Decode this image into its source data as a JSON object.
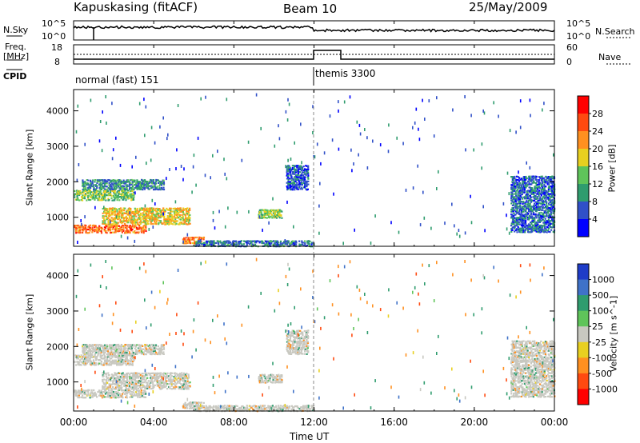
{
  "header": {
    "station": "Kapuskasing (fitACF)",
    "beam": "Beam 10",
    "date": "25/May/2009"
  },
  "noise_panel": {
    "left_label": "N.Sky",
    "right_label": "N.Search",
    "left_ticks": [
      "10^5",
      "10^0"
    ],
    "right_ticks": [
      "10^5",
      "10^0"
    ]
  },
  "freq_panel": {
    "left_label_line1": "Freq.",
    "left_label_line2": "[MHz]",
    "right_label": "Nave",
    "left_ticks": [
      "18",
      "8"
    ],
    "right_ticks": [
      "60",
      "0"
    ]
  },
  "cpid_panel": {
    "label": "CPID",
    "modes": [
      {
        "name": "normal (fast) 151",
        "start_hour": 0
      },
      {
        "name": "themis 3300",
        "start_hour": 12
      }
    ]
  },
  "chart_data": [
    {
      "type": "heatmap",
      "name": "power",
      "xlabel": "",
      "ylabel": "Slant Range [km]",
      "xlim": [
        0,
        24
      ],
      "ylim": [
        180,
        4600
      ],
      "yticks": [
        "1000",
        "2000",
        "3000",
        "4000"
      ],
      "colorbar": {
        "label": "Power [dB]",
        "ticks": [
          "4",
          "8",
          "12",
          "16",
          "20",
          "24",
          "28"
        ],
        "colors": [
          "#0000ff",
          "#3050c8",
          "#2f9c6e",
          "#5fc45a",
          "#e8d020",
          "#ff9020",
          "#ff4a10",
          "#ff0000"
        ],
        "range": [
          0,
          30
        ]
      },
      "regions": [
        {
          "t0": 0.0,
          "t1": 3.6,
          "r0": 580,
          "r1": 820,
          "level": 24
        },
        {
          "t0": 1.4,
          "t1": 5.8,
          "r0": 820,
          "r1": 1300,
          "level": 19
        },
        {
          "t0": 0.0,
          "t1": 3.0,
          "r0": 1500,
          "r1": 1800,
          "level": 14
        },
        {
          "t0": 0.4,
          "t1": 4.5,
          "r0": 1800,
          "r1": 2100,
          "level": 9
        },
        {
          "t0": 9.2,
          "t1": 10.4,
          "r0": 1000,
          "r1": 1250,
          "level": 15
        },
        {
          "t0": 10.6,
          "t1": 11.7,
          "r0": 1800,
          "r1": 2500,
          "level": 6
        },
        {
          "t0": 5.4,
          "t1": 6.5,
          "r0": 280,
          "r1": 480,
          "level": 22
        },
        {
          "t0": 6.0,
          "t1": 12.0,
          "r0": 200,
          "r1": 380,
          "level": 8
        },
        {
          "t0": 21.8,
          "t1": 24.0,
          "r0": 600,
          "r1": 2200,
          "level": 7
        }
      ]
    },
    {
      "type": "heatmap",
      "name": "velocity",
      "xlabel": "Time UT",
      "ylabel": "Slant Range [km]",
      "xlim": [
        0,
        24
      ],
      "ylim": [
        180,
        4600
      ],
      "xticks": [
        "00:00",
        "04:00",
        "08:00",
        "12:00",
        "16:00",
        "20:00",
        "00:00"
      ],
      "yticks": [
        "1000",
        "2000",
        "3000",
        "4000"
      ],
      "colorbar": {
        "label": "Velocity [m s^-1]",
        "ticks": [
          "1000",
          "500",
          "100",
          "25",
          "-25",
          "-100",
          "-500",
          "-1000"
        ],
        "colors": [
          "#1e3cc8",
          "#3f72c8",
          "#2f9c6e",
          "#5fc45a",
          "#c8c8c0",
          "#e8d020",
          "#ff9020",
          "#ff4a10",
          "#ff0000"
        ],
        "range": [
          -1200,
          1200
        ]
      },
      "regions": [
        {
          "t0": 0.0,
          "t1": 3.6,
          "r0": 580,
          "r1": 820,
          "level": 0
        },
        {
          "t0": 1.4,
          "t1": 5.8,
          "r0": 820,
          "r1": 1300,
          "level": 0
        },
        {
          "t0": 0.0,
          "t1": 3.0,
          "r0": 1500,
          "r1": 1800,
          "level": 0
        },
        {
          "t0": 0.4,
          "t1": 4.5,
          "r0": 1800,
          "r1": 2100,
          "level": 0
        },
        {
          "t0": 9.2,
          "t1": 10.4,
          "r0": 1000,
          "r1": 1250,
          "level": 0
        },
        {
          "t0": 10.6,
          "t1": 11.7,
          "r0": 1800,
          "r1": 2500,
          "level": 0
        },
        {
          "t0": 5.4,
          "t1": 6.5,
          "r0": 280,
          "r1": 480,
          "level": 0
        },
        {
          "t0": 6.0,
          "t1": 12.0,
          "r0": 200,
          "r1": 380,
          "level": 0
        },
        {
          "t0": 21.8,
          "t1": 24.0,
          "r0": 600,
          "r1": 2200,
          "level": 0
        }
      ]
    }
  ]
}
